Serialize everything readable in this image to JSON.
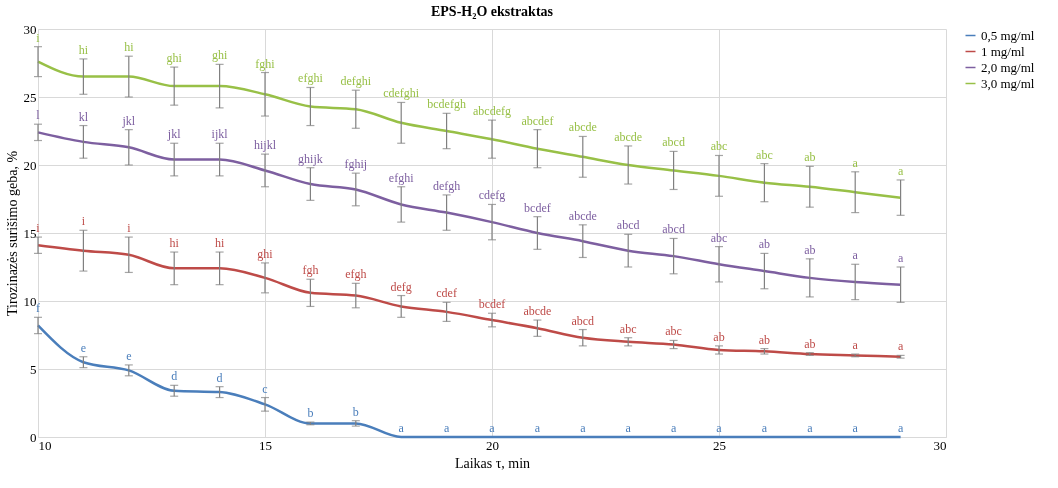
{
  "chart_data": {
    "type": "line",
    "title": "EPS-H₂O ekstraktas",
    "xlabel": "Laikas τ, min",
    "ylabel": "Tirozinazės surišimo geba, %",
    "x": [
      10,
      11,
      12,
      13,
      14,
      15,
      16,
      17,
      18,
      19,
      20,
      21,
      22,
      23,
      24,
      25,
      26,
      27,
      28,
      29
    ],
    "xlim": [
      10,
      30
    ],
    "xticks": [
      10,
      15,
      20,
      25,
      30
    ],
    "ylim": [
      0,
      30
    ],
    "yticks": [
      0,
      5,
      10,
      15,
      20,
      25,
      30
    ],
    "grid": true,
    "legend": "right",
    "series": [
      {
        "name": "0,5 mg/ml",
        "color": "#4a7ebb",
        "values": [
          8.2,
          5.5,
          4.9,
          3.4,
          3.3,
          2.4,
          1.0,
          1.0,
          0,
          0,
          0,
          0,
          0,
          0,
          0,
          0,
          0,
          0,
          0,
          0
        ],
        "errors": [
          0.6,
          0.4,
          0.4,
          0.4,
          0.4,
          0.5,
          0.1,
          0.2,
          null,
          null,
          null,
          null,
          null,
          null,
          null,
          null,
          null,
          null,
          null,
          null
        ],
        "value_labels": [
          "f",
          "e",
          "e",
          "d",
          "d",
          "c",
          "b",
          "b",
          "a",
          "a",
          "a",
          "a",
          "a",
          "a",
          "a",
          "a",
          "a",
          "a",
          "a",
          "a"
        ]
      },
      {
        "name": "1 mg/ml",
        "color": "#be4b48",
        "values": [
          14.1,
          13.7,
          13.4,
          12.4,
          12.4,
          11.7,
          10.6,
          10.4,
          9.6,
          9.2,
          8.6,
          8.0,
          7.3,
          7.0,
          6.8,
          6.4,
          6.3,
          6.1,
          6.0,
          5.9
        ],
        "errors": [
          0.6,
          1.5,
          1.3,
          1.2,
          1.2,
          1.1,
          1.0,
          0.9,
          0.8,
          0.7,
          0.5,
          0.6,
          0.6,
          0.3,
          0.3,
          0.3,
          0.2,
          0.1,
          0.1,
          0.1
        ],
        "value_labels": [
          "i",
          "i",
          "i",
          "hi",
          "hi",
          "ghi",
          "fgh",
          "efgh",
          "defg",
          "cdef",
          "bcdef",
          "abcde",
          "abcd",
          "abc",
          "abc",
          "ab",
          "ab",
          "ab",
          "a",
          "a"
        ]
      },
      {
        "name": "2,0 mg/ml",
        "color": "#7d5fa0",
        "values": [
          22.4,
          21.7,
          21.3,
          20.4,
          20.4,
          19.6,
          18.6,
          18.2,
          17.1,
          16.5,
          15.8,
          15.0,
          14.4,
          13.7,
          13.3,
          12.7,
          12.2,
          11.7,
          11.4,
          11.2
        ],
        "errors": [
          0.6,
          1.2,
          1.3,
          1.2,
          1.2,
          1.2,
          1.2,
          1.2,
          1.3,
          1.3,
          1.3,
          1.2,
          1.2,
          1.2,
          1.3,
          1.3,
          1.3,
          1.4,
          1.3,
          1.3
        ],
        "value_labels": [
          "l",
          "kl",
          "jkl",
          "jkl",
          "ijkl",
          "hijkl",
          "ghijk",
          "fghij",
          "efghi",
          "defgh",
          "cdefg",
          "bcdef",
          "abcde",
          "abcd",
          "abcd",
          "abc",
          "ab",
          "ab",
          "a",
          "a"
        ]
      },
      {
        "name": "3,0 mg/ml",
        "color": "#98c047",
        "values": [
          27.6,
          26.5,
          26.5,
          25.8,
          25.8,
          25.2,
          24.3,
          24.1,
          23.1,
          22.5,
          21.9,
          21.2,
          20.6,
          20.0,
          19.6,
          19.2,
          18.7,
          18.4,
          18.0,
          17.6
        ],
        "errors": [
          1.1,
          1.3,
          1.5,
          1.4,
          1.6,
          1.6,
          1.4,
          1.4,
          1.5,
          1.3,
          1.4,
          1.4,
          1.5,
          1.4,
          1.4,
          1.5,
          1.4,
          1.5,
          1.5,
          1.3
        ],
        "value_labels": [
          "i",
          "hi",
          "hi",
          "ghi",
          "ghi",
          "fghi",
          "efghi",
          "defghi",
          "cdefghi",
          "bcdefgh",
          "abcdefg",
          "abcdef",
          "abcde",
          "abcde",
          "abcd",
          "abc",
          "abc",
          "ab",
          "a",
          "a"
        ]
      }
    ]
  }
}
